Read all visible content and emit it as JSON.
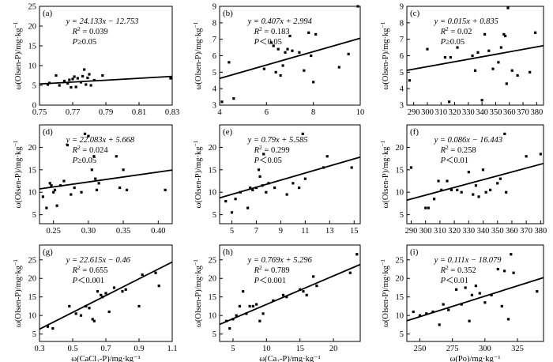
{
  "figure": {
    "ylabel_text": "ω(Olsen-P)/mg·kg",
    "ylabel_sup": "−1"
  },
  "chart_data": [
    {
      "id": "a",
      "type": "scatter",
      "panel_label": "(a)",
      "equation": "y = 24.133x − 12.753",
      "r2_value": "0.039",
      "p_symbol": "P",
      "p_text": "≥0.05",
      "xlabel": "",
      "xlim": [
        0.75,
        0.83
      ],
      "ylim": [
        0,
        25
      ],
      "xticks": [
        "0.75",
        "0.77",
        "0.79",
        "0.81",
        "0.83"
      ],
      "yticks": [
        "0",
        "5",
        "10",
        "15",
        "20",
        "25"
      ],
      "fit": {
        "slope": 24.133,
        "intercept": -12.753
      },
      "x": [
        0.755,
        0.756,
        0.76,
        0.762,
        0.765,
        0.767,
        0.768,
        0.769,
        0.77,
        0.771,
        0.772,
        0.773,
        0.775,
        0.776,
        0.777,
        0.778,
        0.779,
        0.78,
        0.781,
        0.783,
        0.788,
        0.829
      ],
      "y": [
        5.2,
        5.6,
        7.5,
        5.0,
        6.1,
        5.5,
        6.4,
        4.5,
        6.6,
        7.2,
        4.6,
        6.8,
        5.8,
        7.3,
        9.0,
        5.2,
        6.9,
        7.8,
        5.0,
        6.3,
        7.5,
        6.8
      ]
    },
    {
      "id": "b",
      "type": "scatter",
      "panel_label": "(b)",
      "equation": "y = 0.407x + 2.994",
      "r2_value": "0.183",
      "p_symbol": "P",
      "p_text": "＜0.05",
      "xlabel": "",
      "xlim": [
        4,
        10
      ],
      "ylim": [
        3,
        9
      ],
      "xticks": [
        "4",
        "6",
        "8",
        "10"
      ],
      "yticks": [
        "3",
        "4",
        "5",
        "6",
        "7",
        "8",
        "9"
      ],
      "fit": {
        "slope": 0.407,
        "intercept": 2.994
      },
      "x": [
        4.1,
        4.4,
        4.6,
        5.9,
        6.2,
        6.3,
        6.4,
        6.5,
        6.6,
        6.7,
        6.8,
        6.9,
        7.0,
        7.1,
        7.4,
        7.6,
        7.8,
        7.9,
        8.0,
        8.1,
        9.1,
        9.5,
        9.9
      ],
      "y": [
        3.2,
        5.6,
        3.4,
        5.2,
        6.8,
        6.6,
        5.0,
        6.4,
        4.8,
        5.4,
        6.2,
        6.4,
        7.2,
        6.3,
        6.2,
        5.1,
        7.4,
        6.0,
        4.4,
        7.3,
        5.3,
        6.1,
        9.0
      ]
    },
    {
      "id": "c",
      "type": "scatter",
      "panel_label": "(c)",
      "equation": "y = 0.015x + 0.835",
      "r2_value": "0.02",
      "p_symbol": "P",
      "p_text": "≥0.05",
      "xlabel": "",
      "xlim": [
        285,
        385
      ],
      "ylim": [
        3,
        9
      ],
      "xticks": [
        "290",
        "300",
        "310",
        "320",
        "330",
        "340",
        "350",
        "360",
        "370",
        "380"
      ],
      "yticks": [
        "3",
        "4",
        "5",
        "6",
        "7",
        "8",
        "9"
      ],
      "fit": {
        "slope": 0.015,
        "intercept": 0.835
      },
      "x": [
        287,
        300,
        313,
        316,
        317,
        322,
        333,
        335,
        337,
        340,
        342,
        345,
        348,
        352,
        354,
        356,
        357,
        358,
        359,
        362,
        366,
        375,
        379
      ],
      "y": [
        4.5,
        6.4,
        5.9,
        3.2,
        5.9,
        6.5,
        6.0,
        5.1,
        6.2,
        3.3,
        7.3,
        6.3,
        5.2,
        5.6,
        6.5,
        7.3,
        7.2,
        4.3,
        8.9,
        5.1,
        4.8,
        5.0,
        7.4
      ]
    },
    {
      "id": "d",
      "type": "scatter",
      "panel_label": "(d)",
      "equation": "y = 22.083x + 5.668",
      "r2_value": "0.024",
      "p_symbol": "P",
      "p_text": "≥0.05",
      "xlabel": "",
      "xlim": [
        0.23,
        0.42
      ],
      "ylim": [
        3,
        25
      ],
      "xticks": [
        "0.25",
        "0.30",
        "0.35",
        "0.40"
      ],
      "yticks": [
        "5",
        "10",
        "15",
        "20"
      ],
      "fit": {
        "slope": 22.083,
        "intercept": 5.668
      },
      "x": [
        0.235,
        0.24,
        0.245,
        0.247,
        0.25,
        0.252,
        0.255,
        0.26,
        0.265,
        0.27,
        0.275,
        0.28,
        0.29,
        0.295,
        0.3,
        0.305,
        0.308,
        0.31,
        0.312,
        0.315,
        0.34,
        0.345,
        0.35,
        0.355,
        0.41
      ],
      "y": [
        9.0,
        6.5,
        12.0,
        11.5,
        10.0,
        10.5,
        7.0,
        11.5,
        12.5,
        20.5,
        9.5,
        11.0,
        10.0,
        23.0,
        22.5,
        15.0,
        18.0,
        13.0,
        10.5,
        12.0,
        18.0,
        11.0,
        15.0,
        10.5,
        10.5
      ]
    },
    {
      "id": "e",
      "type": "scatter",
      "panel_label": "(e)",
      "equation": "y = 0.79x + 5.585",
      "r2_value": "0.299",
      "p_symbol": "P",
      "p_text": "＜0.05",
      "xlabel": "",
      "xlim": [
        4,
        15.5
      ],
      "ylim": [
        3,
        25
      ],
      "xticks": [
        "5",
        "7",
        "9",
        "11",
        "13",
        "15"
      ],
      "yticks": [
        "5",
        "10",
        "15",
        "20"
      ],
      "fit": {
        "slope": 0.79,
        "intercept": 5.585
      },
      "x": [
        4.5,
        5.0,
        5.3,
        5.7,
        6.3,
        6.5,
        6.7,
        7.0,
        7.2,
        7.3,
        7.5,
        7.6,
        7.8,
        8.0,
        8.5,
        9.5,
        10.0,
        10.5,
        10.8,
        11.0,
        12.5,
        12.8,
        14.8
      ],
      "y": [
        8.0,
        5.5,
        8.5,
        10.0,
        6.5,
        11.0,
        10.5,
        11.0,
        15.0,
        13.5,
        11.5,
        18.5,
        10.0,
        12.0,
        11.0,
        9.5,
        12.0,
        11.0,
        23.0,
        13.0,
        15.5,
        18.0,
        15.5
      ]
    },
    {
      "id": "f",
      "type": "scatter",
      "panel_label": "(f)",
      "equation": "y = 0.086x − 16.443",
      "r2_value": "0.258",
      "p_symbol": "P",
      "p_text": "＜0.01",
      "xlabel": "",
      "xlim": [
        287,
        382
      ],
      "ylim": [
        3,
        25
      ],
      "xticks": [
        "290",
        "300",
        "310",
        "320",
        "330",
        "340",
        "350",
        "360",
        "370",
        "380"
      ],
      "yticks": [
        "5",
        "10",
        "15",
        "20"
      ],
      "fit": {
        "slope": 0.086,
        "intercept": -16.443
      },
      "x": [
        290,
        300,
        302,
        306,
        309,
        311,
        315,
        318,
        322,
        325,
        330,
        333,
        335,
        337,
        340,
        342,
        345,
        350,
        352,
        355,
        356,
        370,
        380
      ],
      "y": [
        15.5,
        6.5,
        6.5,
        8.5,
        12.5,
        10.5,
        12.5,
        10.5,
        10.5,
        10.0,
        14.5,
        9.5,
        11.5,
        9.0,
        15.0,
        10.0,
        10.5,
        12.0,
        13.0,
        23.0,
        10.0,
        18.0,
        18.5
      ]
    },
    {
      "id": "g",
      "type": "scatter",
      "panel_label": "(g)",
      "equation": "y = 22.615x − 0.46",
      "r2_value": "0.655",
      "p_symbol": "P",
      "p_text": "＜0.001",
      "xlabel": "ω(CaCl₂-P)/mg·kg⁻¹",
      "xlim": [
        0.3,
        1.1
      ],
      "ylim": [
        3,
        29
      ],
      "xticks": [
        "0.3",
        "0.5",
        "0.7",
        "0.9",
        "1.1"
      ],
      "yticks": [
        "5",
        "10",
        "15",
        "20",
        "25"
      ],
      "fit": {
        "slope": 22.615,
        "intercept": -0.46
      },
      "x": [
        0.35,
        0.38,
        0.48,
        0.52,
        0.55,
        0.58,
        0.6,
        0.62,
        0.63,
        0.65,
        0.67,
        0.68,
        0.7,
        0.72,
        0.75,
        0.8,
        0.82,
        0.9,
        0.92,
        1.0,
        1.02
      ],
      "y": [
        7.0,
        6.5,
        12.5,
        10.5,
        10.0,
        12.5,
        12.0,
        9.0,
        8.5,
        16.5,
        15.5,
        15.0,
        16.0,
        11.0,
        17.5,
        16.5,
        17.0,
        12.5,
        21.0,
        21.5,
        18.0
      ]
    },
    {
      "id": "h",
      "type": "scatter",
      "panel_label": "(h)",
      "equation": "y = 0.769x + 5.296",
      "r2_value": "0.789",
      "p_symbol": "P",
      "p_text": "＜0.001",
      "xlabel": "ω(Ca₂-P)/mg·kg⁻¹",
      "xlim": [
        3,
        24
      ],
      "ylim": [
        3,
        29
      ],
      "xticks": [
        "5",
        "10",
        "15",
        "20"
      ],
      "yticks": [
        "5",
        "10",
        "15",
        "20",
        "25"
      ],
      "fit": {
        "slope": 0.769,
        "intercept": 5.296
      },
      "x": [
        4.0,
        4.5,
        5.0,
        5.5,
        6.0,
        6.5,
        7.0,
        7.5,
        8.0,
        8.5,
        9.0,
        9.5,
        11.0,
        12.5,
        13.0,
        15.0,
        15.5,
        16.0,
        17.0,
        17.5,
        22.5,
        23.5
      ],
      "y": [
        8.5,
        6.5,
        9.0,
        10.0,
        12.5,
        16.5,
        10.5,
        12.5,
        12.5,
        13.0,
        8.5,
        10.5,
        14.0,
        15.5,
        15.0,
        17.0,
        16.5,
        15.5,
        20.5,
        18.0,
        21.5,
        26.5
      ]
    },
    {
      "id": "i",
      "type": "scatter",
      "panel_label": "(i)",
      "equation": "y = 0.111x − 18.079",
      "r2_value": "0.352",
      "p_symbol": "P",
      "p_text": "＜0.01",
      "xlabel": "ω(Po)/mg·kg⁻¹",
      "xlim": [
        240,
        345
      ],
      "ylim": [
        3,
        29
      ],
      "xticks": [
        "250",
        "275",
        "300",
        "325"
      ],
      "yticks": [
        "5",
        "10",
        "15",
        "20",
        "25"
      ],
      "fit": {
        "slope": 0.111,
        "intercept": -18.079
      },
      "x": [
        245,
        250,
        255,
        260,
        265,
        268,
        272,
        278,
        282,
        285,
        288,
        290,
        293,
        296,
        300,
        305,
        310,
        313,
        315,
        318,
        320,
        322,
        340
      ],
      "y": [
        11.0,
        10.0,
        10.5,
        11.0,
        7.5,
        13.0,
        11.5,
        17.0,
        13.0,
        17.5,
        8.5,
        15.5,
        18.0,
        16.0,
        13.5,
        15.5,
        22.5,
        12.5,
        22.0,
        9.0,
        26.5,
        21.5,
        16.5
      ]
    }
  ]
}
